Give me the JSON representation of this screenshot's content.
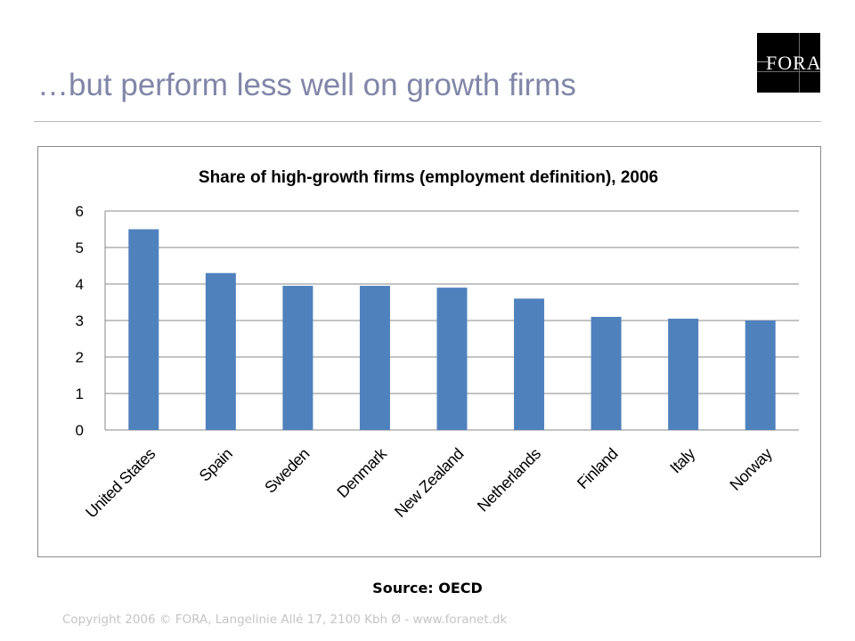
{
  "slide": {
    "title": "…but perform less well on growth firms",
    "logo_text": "FORA",
    "source": "Source: OECD",
    "copyright": "Copyright 2006 © FORA, Langelinie Allé 17, 2100 Kbh Ø - www.foranet.dk"
  },
  "chart_data": {
    "type": "bar",
    "title": "Share of high-growth firms (employment definition), 2006",
    "categories": [
      "United States",
      "Spain",
      "Sweden",
      "Denmark",
      "New Zealand",
      "Netherlands",
      "Finland",
      "Italy",
      "Norway"
    ],
    "values": [
      5.5,
      4.3,
      3.95,
      3.95,
      3.9,
      3.6,
      3.1,
      3.05,
      3.0
    ],
    "xlabel": "",
    "ylabel": "",
    "ylim": [
      0,
      6
    ],
    "yticks": [
      "0",
      "1",
      "2",
      "3",
      "4",
      "5",
      "6"
    ],
    "grid": true,
    "legend": "none",
    "bar_color": "#4f81bd"
  }
}
